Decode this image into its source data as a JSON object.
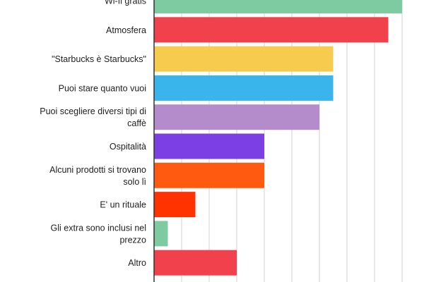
{
  "chart_data": {
    "type": "bar",
    "orientation": "horizontal",
    "title": "",
    "xlabel": "",
    "ylabel": "",
    "grid": true,
    "categories": [
      [
        "Wi-fi gratis"
      ],
      [
        "Atmosfera"
      ],
      [
        "\"Starbucks è Starbucks\""
      ],
      [
        "Puoi stare quanto vuoi"
      ],
      [
        "Puoi scegliere diversi tipi di",
        "caffè"
      ],
      [
        "Ospitalità"
      ],
      [
        "Alcuni prodotti si trovano",
        "solo lì"
      ],
      [
        "E' un rituale"
      ],
      [
        "Gli extra sono inclusi nel",
        "prezzo"
      ],
      [
        "Altro"
      ]
    ],
    "values": [
      36,
      34,
      26,
      26,
      24,
      16,
      16,
      6,
      2,
      12
    ],
    "xlim": [
      0,
      36
    ],
    "colors": [
      "#7ecba1",
      "#f0414d",
      "#f7cb4d",
      "#39b5ec",
      "#b48bcb",
      "#7b3fe4",
      "#ff5a0f",
      "#ff3300",
      "#7ecba1",
      "#f0414d"
    ]
  }
}
